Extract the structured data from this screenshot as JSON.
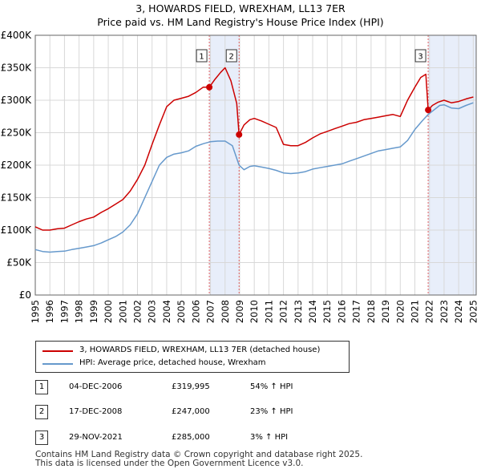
{
  "title": "3, HOWARDS FIELD, WREXHAM, LL13 7ER",
  "subtitle": "Price paid vs. HM Land Registry's House Price Index (HPI)",
  "colors": {
    "property": "#cc0000",
    "hpi": "#6699cc",
    "shade": "#e8eefa",
    "marker_line": "#e06060"
  },
  "chart_data": {
    "type": "line",
    "title": "3, HOWARDS FIELD, WREXHAM, LL13 7ER",
    "subtitle": "Price paid vs. HM Land Registry's House Price Index (HPI)",
    "xlim": [
      1995,
      2025.2
    ],
    "ylim": [
      0,
      400000
    ],
    "yticks": [
      0,
      50000,
      100000,
      150000,
      200000,
      250000,
      300000,
      350000,
      400000
    ],
    "ytick_labels": [
      "£0",
      "£50K",
      "£100K",
      "£150K",
      "£200K",
      "£250K",
      "£300K",
      "£350K",
      "£400K"
    ],
    "xticks": [
      1995,
      1996,
      1997,
      1998,
      1999,
      2000,
      2001,
      2002,
      2003,
      2004,
      2005,
      2006,
      2007,
      2008,
      2009,
      2010,
      2011,
      2012,
      2013,
      2014,
      2015,
      2016,
      2017,
      2018,
      2019,
      2020,
      2021,
      2022,
      2023,
      2024,
      2025
    ],
    "grid": true,
    "series": [
      {
        "name": "3, HOWARDS FIELD, WREXHAM, LL13 7ER (detached house)",
        "color": "#cc0000",
        "x": [
          1995,
          1995.5,
          1996,
          1996.5,
          1997,
          1997.5,
          1998,
          1998.5,
          1999,
          1999.5,
          2000,
          2000.5,
          2001,
          2001.5,
          2002,
          2002.5,
          2003,
          2003.5,
          2004,
          2004.5,
          2005,
          2005.5,
          2006,
          2006.5,
          2006.92,
          2007.3,
          2007.7,
          2008.0,
          2008.4,
          2008.8,
          2008.96,
          2009.3,
          2009.7,
          2010,
          2010.5,
          2011,
          2011.5,
          2012,
          2012.5,
          2013,
          2013.5,
          2014,
          2014.5,
          2015,
          2015.5,
          2016,
          2016.5,
          2017,
          2017.5,
          2018,
          2018.5,
          2019,
          2019.5,
          2020,
          2020.5,
          2021,
          2021.4,
          2021.75,
          2021.91,
          2022.2,
          2022.6,
          2023,
          2023.5,
          2024,
          2024.5,
          2025
        ],
        "y": [
          105000,
          100000,
          100000,
          102000,
          103000,
          108000,
          113000,
          117000,
          120000,
          127000,
          133000,
          140000,
          147000,
          160000,
          178000,
          200000,
          232000,
          262000,
          290000,
          300000,
          303000,
          306000,
          312000,
          320000,
          319995,
          332000,
          343000,
          350000,
          330000,
          295000,
          247000,
          262000,
          270000,
          272000,
          268000,
          263000,
          258000,
          232000,
          230000,
          230000,
          235000,
          242000,
          248000,
          252000,
          256000,
          260000,
          264000,
          266000,
          270000,
          272000,
          274000,
          276000,
          278000,
          275000,
          300000,
          320000,
          335000,
          340000,
          285000,
          292000,
          297000,
          300000,
          296000,
          298000,
          302000,
          305000
        ]
      },
      {
        "name": "HPI: Average price, detached house, Wrexham",
        "color": "#6699cc",
        "x": [
          1995,
          1995.5,
          1996,
          1996.5,
          1997,
          1997.5,
          1998,
          1998.5,
          1999,
          1999.5,
          2000,
          2000.5,
          2001,
          2001.5,
          2002,
          2002.5,
          2003,
          2003.5,
          2004,
          2004.5,
          2005,
          2005.5,
          2006,
          2006.5,
          2007,
          2007.5,
          2008,
          2008.5,
          2008.96,
          2009.3,
          2009.7,
          2010,
          2010.5,
          2011,
          2011.5,
          2012,
          2012.5,
          2013,
          2013.5,
          2014,
          2014.5,
          2015,
          2015.5,
          2016,
          2016.5,
          2017,
          2017.5,
          2018,
          2018.5,
          2019,
          2019.5,
          2020,
          2020.5,
          2021,
          2021.5,
          2021.91,
          2022.3,
          2022.7,
          2023,
          2023.5,
          2024,
          2024.5,
          2025
        ],
        "y": [
          70000,
          67000,
          66000,
          67000,
          67500,
          70000,
          72000,
          74000,
          76000,
          80000,
          85000,
          90000,
          97000,
          108000,
          125000,
          150000,
          175000,
          200000,
          212000,
          217000,
          219000,
          222000,
          229000,
          233000,
          236000,
          237000,
          237000,
          230000,
          200000,
          193000,
          198000,
          199000,
          197000,
          195000,
          192000,
          188000,
          187000,
          188000,
          190000,
          194000,
          196000,
          198000,
          200000,
          202000,
          206000,
          210000,
          214000,
          218000,
          222000,
          224000,
          226000,
          228000,
          238000,
          255000,
          268000,
          278000,
          285000,
          292000,
          293000,
          288000,
          287000,
          292000,
          296000
        ]
      }
    ],
    "sales": [
      {
        "num": "1",
        "x": 2006.92,
        "y": 319995
      },
      {
        "num": "2",
        "x": 2008.96,
        "y": 247000
      },
      {
        "num": "3",
        "x": 2021.91,
        "y": 285000
      }
    ],
    "shaded_ranges": [
      [
        2006.92,
        2008.96
      ],
      [
        2021.91,
        2025.2
      ]
    ]
  },
  "legend": {
    "property_label": "3, HOWARDS FIELD, WREXHAM, LL13 7ER (detached house)",
    "hpi_label": "HPI: Average price, detached house, Wrexham"
  },
  "sales_table": [
    {
      "num": "1",
      "date": "04-DEC-2006",
      "price": "£319,995",
      "hpi": "54% ↑ HPI"
    },
    {
      "num": "2",
      "date": "17-DEC-2008",
      "price": "£247,000",
      "hpi": "23% ↑ HPI"
    },
    {
      "num": "3",
      "date": "29-NOV-2021",
      "price": "£285,000",
      "hpi": "3% ↑ HPI"
    }
  ],
  "footer": {
    "line1": "Contains HM Land Registry data © Crown copyright and database right 2025.",
    "line2": "This data is licensed under the Open Government Licence v3.0."
  }
}
